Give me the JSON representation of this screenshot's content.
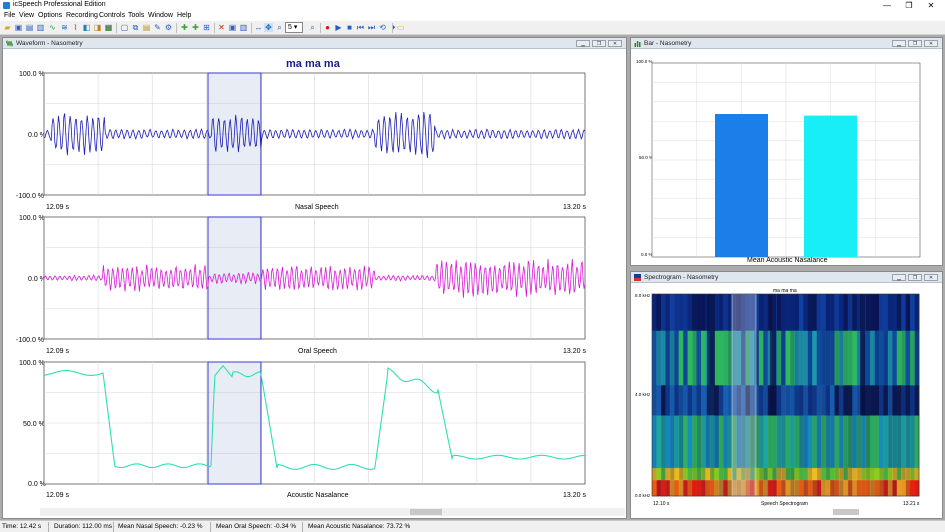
{
  "app": {
    "title": "icSpeech Professional Edition",
    "window_controls": [
      "—",
      "❐",
      "✕"
    ]
  },
  "menu": [
    "File",
    "View",
    "Options",
    "Recording",
    "Controls",
    "Tools",
    "Window",
    "Help"
  ],
  "toolbar": {
    "zoom_value": "5"
  },
  "waveform_window": {
    "title": "Waveform - Nasometry",
    "plot_title": "ma ma ma",
    "panels": [
      {
        "label": "Nasal Speech",
        "y_ticks": [
          "100.0 %",
          "0.0 %",
          "-100.0 %"
        ],
        "x_start": "12.09 s",
        "x_end": "13.20 s",
        "color": "#1c1cb8"
      },
      {
        "label": "Oral Speech",
        "y_ticks": [
          "100.0 %",
          "0.0 %",
          "-100.0 %"
        ],
        "x_start": "12.09 s",
        "x_end": "13.20 s",
        "color": "#d91ad9"
      },
      {
        "label": "Acoustic Nasalance",
        "y_ticks": [
          "100.0 %",
          "50.0 %",
          "0.0 %"
        ],
        "x_start": "12.09 s",
        "x_end": "13.20 s",
        "color": "#2ee0b0"
      }
    ]
  },
  "bar_window": {
    "title": "Bar - Nasometry",
    "y_ticks": [
      "100.0 %",
      "50.0 %",
      "0.0 %"
    ],
    "x_label": "Mean  Acoustic Nasalance",
    "chart_data": {
      "type": "bar",
      "ylim": [
        0,
        100
      ],
      "series": [
        {
          "color": "#1a7fe8",
          "value": 73.7
        },
        {
          "color": "#18eef6",
          "value": 72.9
        }
      ]
    }
  },
  "spectrogram_window": {
    "title": "Spectrogram - Nasometry",
    "plot_title": "ma ma ma",
    "y_ticks": [
      "8.0 kHz",
      "4.0 kHz",
      "0.0 kHz"
    ],
    "x_start": "12.10 s",
    "x_end": "13.21 s",
    "x_label": "Speech Spectrogram"
  },
  "status": {
    "time": "Time: 12.42 s",
    "duration": "Duration: 112.00 ms",
    "mean_nasal": "Mean Nasal Speech: -0.23 %",
    "mean_oral": "Mean Oral Speech: -0.34 %",
    "mean_nasalance": "Mean Acoustic Nasalance: 73.72 %"
  }
}
